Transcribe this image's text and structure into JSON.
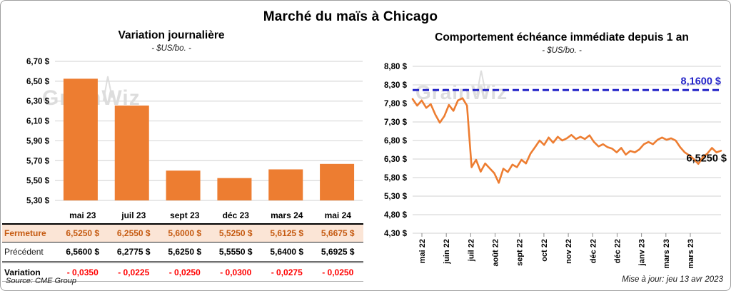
{
  "page": {
    "title": "Marché du maïs à Chicago",
    "source": "Source: CME Group",
    "updated": "Mise à jour: jeu 13 avr 2023",
    "watermark": "GrainWiz"
  },
  "colors": {
    "bar_orange": "#ED7D31",
    "line_orange": "#ED7D31",
    "reference_blue": "#2424C8",
    "fermeture_bg": "#FBE5D6",
    "fermeture_text": "#C55A11",
    "variation_red": "#FF0000",
    "gridline": "#D9D9D9",
    "watermark_gray": "#C3C3C3"
  },
  "chart_data": [
    {
      "type": "bar",
      "title": "Variation journalière",
      "subtitle": "- $US/bo. -",
      "categories": [
        "mai 23",
        "juil 23",
        "sept 23",
        "déc 23",
        "mars 24",
        "mai 24"
      ],
      "values": [
        6.525,
        6.255,
        5.6,
        5.525,
        5.6125,
        5.6675
      ],
      "ylim": [
        5.3,
        6.7
      ],
      "ytick_step": 0.2,
      "ytick_labels": [
        "6,70 $",
        "6,50 $",
        "6,30 $",
        "6,10 $",
        "5,90 $",
        "5,70 $",
        "5,50 $",
        "5,30 $"
      ],
      "grid": true,
      "legend": "none"
    },
    {
      "type": "line",
      "title": "Comportement échéance immédiate depuis 1 an",
      "subtitle": "- $US/bo. -",
      "x_labels": [
        "mai 22",
        "juin 22",
        "juil 22",
        "août 22",
        "sept 22",
        "oct 22",
        "nov 22",
        "déc 22",
        "déc 22",
        "janv 23",
        "mars 23",
        "mars 23"
      ],
      "ylim": [
        4.3,
        8.8
      ],
      "ytick_step": 0.5,
      "ytick_labels": [
        "8,80 $",
        "8,30 $",
        "7,80 $",
        "7,30 $",
        "6,80 $",
        "6,30 $",
        "5,80 $",
        "5,30 $",
        "4,80 $",
        "4,30 $"
      ],
      "grid": true,
      "reference_line": {
        "value": 8.16,
        "label": "8,1600 $"
      },
      "last_value": 6.525,
      "last_label": "6,5250 $",
      "values": [
        7.92,
        7.74,
        7.88,
        7.68,
        7.78,
        7.5,
        7.28,
        7.46,
        7.76,
        7.6,
        7.88,
        7.94,
        7.74,
        6.08,
        6.28,
        5.96,
        6.18,
        6.05,
        5.92,
        5.66,
        6.04,
        5.95,
        6.15,
        6.08,
        6.28,
        6.18,
        6.45,
        6.62,
        6.8,
        6.68,
        6.88,
        6.74,
        6.9,
        6.8,
        6.86,
        6.95,
        6.84,
        6.9,
        6.84,
        6.94,
        6.76,
        6.64,
        6.7,
        6.62,
        6.58,
        6.48,
        6.6,
        6.42,
        6.52,
        6.48,
        6.56,
        6.7,
        6.76,
        6.7,
        6.82,
        6.88,
        6.82,
        6.86,
        6.8,
        6.62,
        6.48,
        6.4,
        6.3,
        6.17,
        6.35,
        6.45,
        6.6,
        6.48,
        6.525
      ]
    }
  ],
  "table": {
    "corner": "",
    "header": [
      "mai 23",
      "juil 23",
      "sept 23",
      "déc 23",
      "mars 24",
      "mai 24"
    ],
    "rows": [
      {
        "label": "Fermeture",
        "style": "qferm",
        "values": [
          "6,5250 $",
          "6,2550 $",
          "5,6000 $",
          "5,5250 $",
          "5,6125 $",
          "5,6675 $"
        ]
      },
      {
        "label": "Précédent",
        "style": "qprec",
        "values": [
          "6,5600 $",
          "6,2775 $",
          "5,6250 $",
          "5,5550 $",
          "5,6400 $",
          "5,6925 $"
        ]
      },
      {
        "label": "Variation",
        "style": "qvar",
        "values": [
          "- 0,0350",
          "- 0,0225",
          "- 0,0250",
          "- 0,0300",
          "- 0,0275",
          "- 0,0250"
        ]
      }
    ]
  }
}
